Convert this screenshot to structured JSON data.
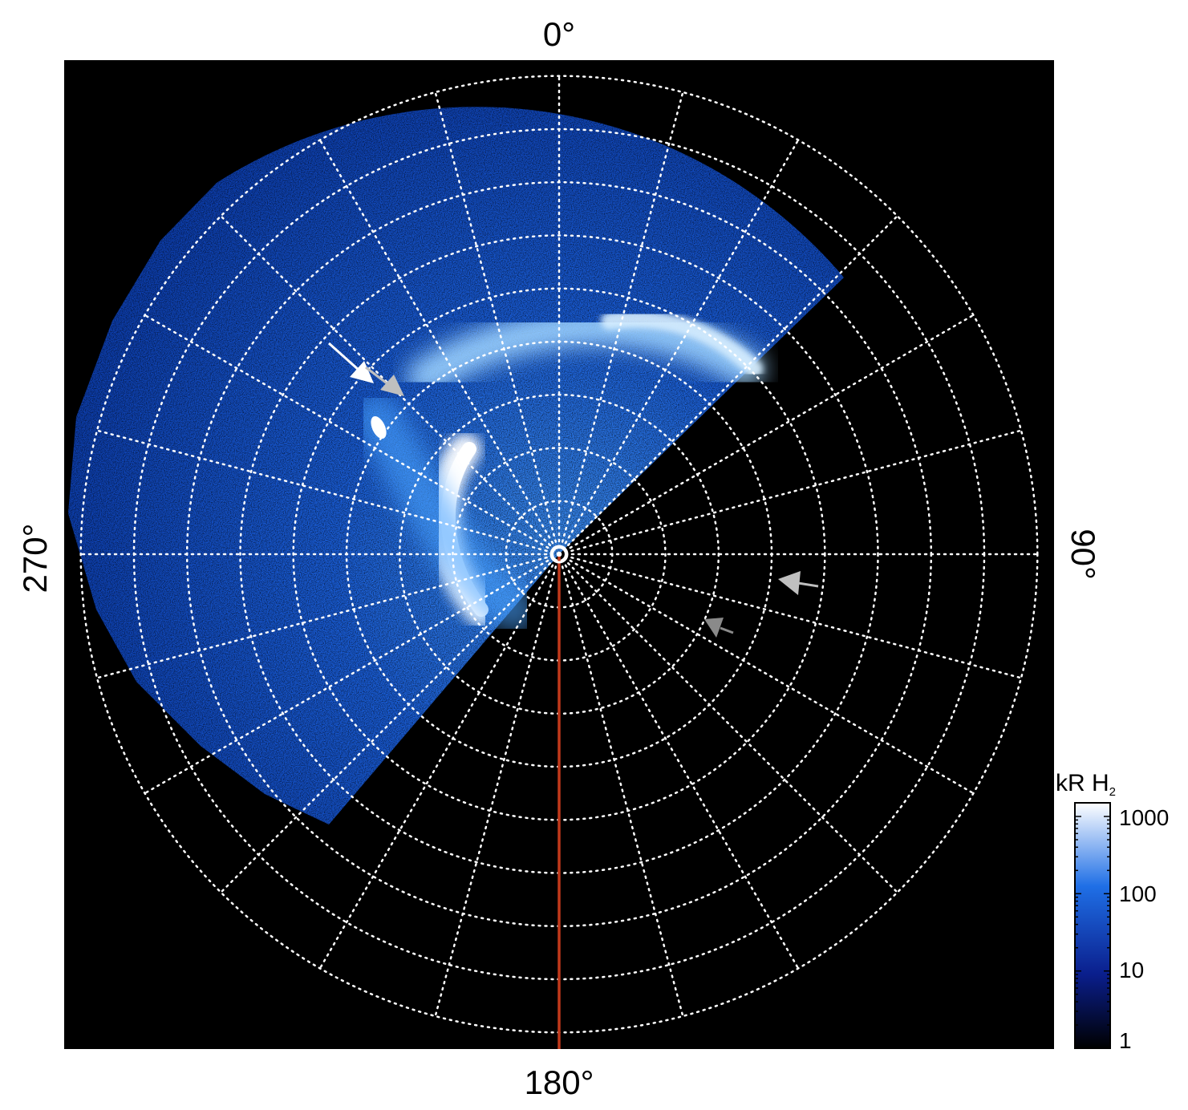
{
  "figure": {
    "direction_labels": {
      "top": "0°",
      "right": "90°",
      "bottom": "180°",
      "left": "270°"
    },
    "colorbar": {
      "title": "kR H",
      "title_subscript": "2",
      "ticks": [
        "1000",
        "100",
        "10",
        "1"
      ],
      "scale": "log",
      "range": [
        1,
        1500
      ],
      "colors": [
        "#000000",
        "#0a1e8c",
        "#1f6fe6",
        "#ffffff"
      ]
    },
    "colors": {
      "background_panel": "#000000",
      "emission_blue": "#1f6fe6",
      "grid": "#ffffff",
      "meridian_line": "#c0391b",
      "arrow_white": "#ffffff",
      "arrow_gray": "#bfbfbf"
    },
    "grid": {
      "style": "dotted",
      "meridians_deg": 15,
      "rings": 8
    }
  }
}
